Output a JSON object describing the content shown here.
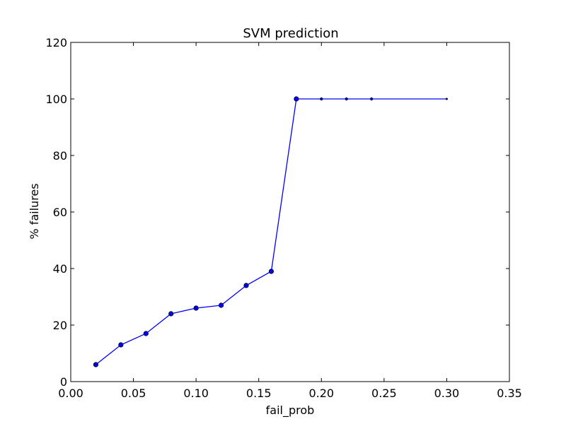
{
  "chart_data": {
    "type": "line",
    "title": "SVM prediction",
    "xlabel": "fail_prob",
    "ylabel": "% failures",
    "xlim": [
      0.0,
      0.35
    ],
    "ylim": [
      0,
      120
    ],
    "xticks": [
      "0.00",
      "0.05",
      "0.10",
      "0.15",
      "0.20",
      "0.25",
      "0.30",
      "0.35"
    ],
    "yticks": [
      "0",
      "20",
      "40",
      "60",
      "80",
      "100",
      "120"
    ],
    "grid": false,
    "legend": "none",
    "series": [
      {
        "color": "#0000ff",
        "x": [
          0.02,
          0.04,
          0.06,
          0.08,
          0.1,
          0.12,
          0.14,
          0.16,
          0.18,
          0.2,
          0.22,
          0.24,
          0.3
        ],
        "y": [
          6,
          13,
          17,
          24,
          26,
          27,
          34,
          39,
          100,
          100,
          100,
          100,
          100
        ],
        "marker_sizes": [
          "large",
          "large",
          "large",
          "large",
          "large",
          "large",
          "large",
          "large",
          "large",
          "small",
          "small",
          "small",
          "tiny"
        ]
      }
    ]
  }
}
